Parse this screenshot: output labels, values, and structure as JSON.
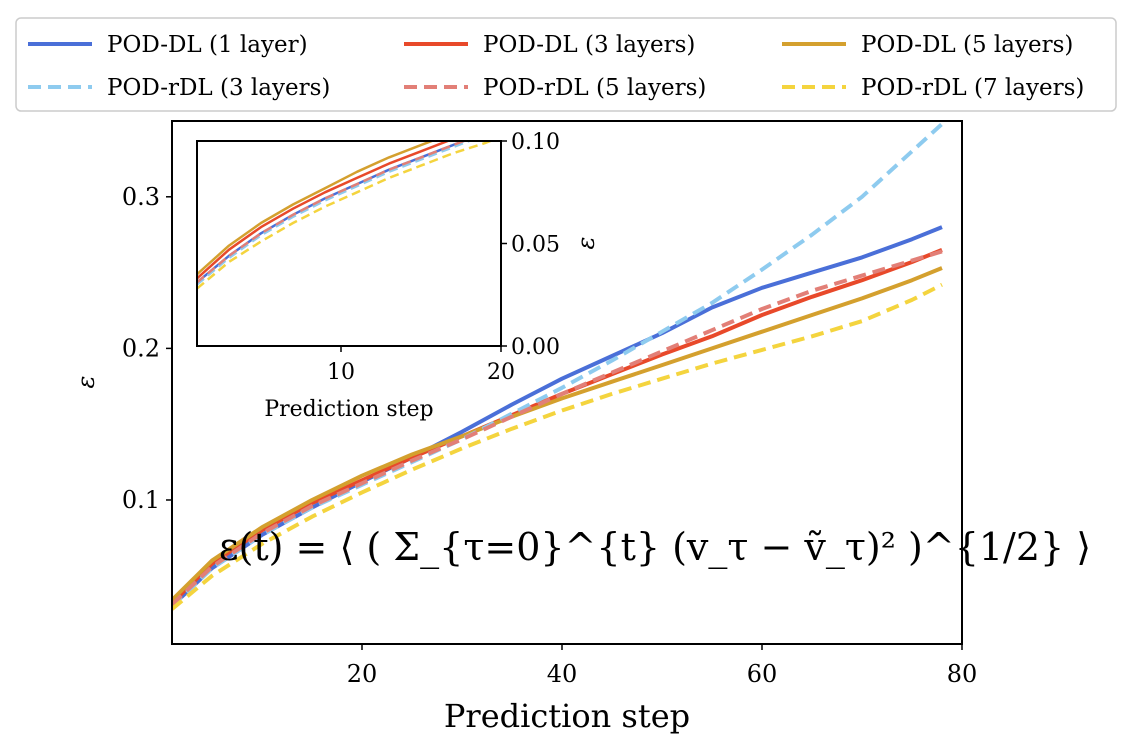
{
  "chart_data": [
    {
      "type": "line",
      "xlabel": "Prediction step",
      "ylabel": "ε",
      "xlim": [
        1,
        80
      ],
      "ylim": [
        0.005,
        0.35
      ],
      "xticks": [
        20,
        40,
        60,
        80
      ],
      "yticks": [
        0.1,
        0.2,
        0.3
      ],
      "xtick_labels": [
        "20",
        "40",
        "60",
        "80"
      ],
      "ytick_labels": [
        "0.1",
        "0.2",
        "0.3"
      ],
      "formula": "ε(t) = ⟨ ( Σ_{τ=0}^{t} (v_τ − ṽ_τ)² )^{1/2} ⟩",
      "series": [
        {
          "name": "POD-DL (1 layer)",
          "color": "#4a6fd8",
          "dash": "solid",
          "x": [
            1,
            5,
            10,
            15,
            20,
            25,
            30,
            35,
            40,
            45,
            50,
            55,
            60,
            65,
            70,
            75,
            78
          ],
          "y": [
            0.03,
            0.055,
            0.077,
            0.095,
            0.112,
            0.128,
            0.145,
            0.163,
            0.18,
            0.195,
            0.21,
            0.227,
            0.24,
            0.25,
            0.26,
            0.272,
            0.28
          ]
        },
        {
          "name": "POD-DL (3 layers)",
          "color": "#e8492a",
          "dash": "solid",
          "x": [
            1,
            5,
            10,
            15,
            20,
            25,
            30,
            35,
            40,
            45,
            50,
            55,
            60,
            65,
            70,
            75,
            78
          ],
          "y": [
            0.032,
            0.058,
            0.08,
            0.098,
            0.113,
            0.128,
            0.142,
            0.156,
            0.17,
            0.183,
            0.196,
            0.208,
            0.222,
            0.234,
            0.245,
            0.257,
            0.265
          ]
        },
        {
          "name": "POD-DL (5 layers)",
          "color": "#d4a02e",
          "dash": "solid",
          "x": [
            1,
            5,
            10,
            15,
            20,
            25,
            30,
            35,
            40,
            45,
            50,
            55,
            60,
            65,
            70,
            75,
            78
          ],
          "y": [
            0.034,
            0.06,
            0.082,
            0.1,
            0.116,
            0.13,
            0.142,
            0.155,
            0.167,
            0.178,
            0.189,
            0.2,
            0.211,
            0.222,
            0.233,
            0.245,
            0.253
          ]
        },
        {
          "name": "POD-rDL (3 layers)",
          "color": "#8ecbef",
          "dash": "dashed",
          "x": [
            1,
            5,
            10,
            15,
            20,
            25,
            30,
            35,
            40,
            45,
            50,
            55,
            60,
            65,
            70,
            75,
            78
          ],
          "y": [
            0.03,
            0.055,
            0.077,
            0.095,
            0.11,
            0.125,
            0.14,
            0.157,
            0.174,
            0.192,
            0.211,
            0.23,
            0.252,
            0.275,
            0.3,
            0.33,
            0.348
          ]
        },
        {
          "name": "POD-rDL (5 layers)",
          "color": "#e27f77",
          "dash": "dashed",
          "x": [
            1,
            5,
            10,
            15,
            20,
            25,
            30,
            35,
            40,
            45,
            50,
            55,
            60,
            65,
            70,
            75,
            78
          ],
          "y": [
            0.031,
            0.056,
            0.078,
            0.096,
            0.111,
            0.126,
            0.14,
            0.155,
            0.17,
            0.184,
            0.198,
            0.212,
            0.226,
            0.238,
            0.248,
            0.258,
            0.264
          ]
        },
        {
          "name": "POD-rDL (7 layers)",
          "color": "#f4d43e",
          "dash": "dashed",
          "x": [
            1,
            5,
            10,
            15,
            20,
            25,
            30,
            35,
            40,
            45,
            50,
            55,
            60,
            65,
            70,
            75,
            78
          ],
          "y": [
            0.028,
            0.05,
            0.071,
            0.089,
            0.105,
            0.12,
            0.134,
            0.147,
            0.159,
            0.17,
            0.18,
            0.19,
            0.199,
            0.208,
            0.218,
            0.232,
            0.242
          ]
        }
      ]
    },
    {
      "type": "line",
      "xlabel": "Prediction step",
      "ylabel": "ε",
      "xlim": [
        1,
        20
      ],
      "ylim": [
        0,
        0.1
      ],
      "xticks": [
        10,
        20
      ],
      "yticks": [
        0,
        0.05,
        0.1
      ],
      "xtick_labels": [
        "10",
        "20"
      ],
      "ytick_labels": [
        "0.00",
        "0.05",
        "0.10"
      ],
      "series": [
        {
          "name": "POD-DL (1 layer)",
          "color": "#4a6fd8",
          "dash": "solid",
          "x": [
            1,
            3,
            5,
            7,
            9,
            11,
            13,
            15,
            17,
            19,
            20
          ],
          "y": [
            0.031,
            0.044,
            0.055,
            0.064,
            0.072,
            0.079,
            0.086,
            0.092,
            0.098,
            0.104,
            0.107
          ]
        },
        {
          "name": "POD-DL (3 layers)",
          "color": "#e8492a",
          "dash": "solid",
          "x": [
            1,
            3,
            5,
            7,
            9,
            11,
            13,
            15,
            17,
            19,
            20
          ],
          "y": [
            0.033,
            0.047,
            0.058,
            0.067,
            0.075,
            0.082,
            0.089,
            0.095,
            0.101,
            0.107,
            0.11
          ]
        },
        {
          "name": "POD-DL (5 layers)",
          "color": "#d4a02e",
          "dash": "solid",
          "x": [
            1,
            3,
            5,
            7,
            9,
            11,
            13,
            15,
            17,
            19,
            20
          ],
          "y": [
            0.035,
            0.049,
            0.06,
            0.069,
            0.077,
            0.085,
            0.092,
            0.098,
            0.104,
            0.11,
            0.113
          ]
        },
        {
          "name": "POD-rDL (3 layers)",
          "color": "#8ecbef",
          "dash": "dashed",
          "x": [
            1,
            3,
            5,
            7,
            9,
            11,
            13,
            15,
            17,
            19,
            20
          ],
          "y": [
            0.03,
            0.043,
            0.054,
            0.063,
            0.071,
            0.078,
            0.085,
            0.091,
            0.097,
            0.103,
            0.106
          ]
        },
        {
          "name": "POD-rDL (5 layers)",
          "color": "#e27f77",
          "dash": "dashed",
          "x": [
            1,
            3,
            5,
            7,
            9,
            11,
            13,
            15,
            17,
            19,
            20
          ],
          "y": [
            0.031,
            0.044,
            0.055,
            0.064,
            0.072,
            0.079,
            0.086,
            0.092,
            0.098,
            0.104,
            0.107
          ]
        },
        {
          "name": "POD-rDL (7 layers)",
          "color": "#f4d43e",
          "dash": "dashed",
          "x": [
            1,
            3,
            5,
            7,
            9,
            11,
            13,
            15,
            17,
            19,
            20
          ],
          "y": [
            0.028,
            0.041,
            0.051,
            0.06,
            0.068,
            0.075,
            0.082,
            0.088,
            0.094,
            0.099,
            0.102
          ]
        }
      ]
    }
  ],
  "legend": {
    "placement": "top",
    "columns": 3,
    "entries": [
      {
        "label": "POD-DL (1 layer)",
        "color": "#4a6fd8",
        "dash": "solid"
      },
      {
        "label": "POD-DL (3 layers)",
        "color": "#e8492a",
        "dash": "solid"
      },
      {
        "label": "POD-DL (5 layers)",
        "color": "#d4a02e",
        "dash": "solid"
      },
      {
        "label": "POD-rDL (3 layers)",
        "color": "#8ecbef",
        "dash": "dashed"
      },
      {
        "label": "POD-rDL (5 layers)",
        "color": "#e27f77",
        "dash": "dashed"
      },
      {
        "label": "POD-rDL (7 layers)",
        "color": "#f4d43e",
        "dash": "dashed"
      }
    ]
  }
}
